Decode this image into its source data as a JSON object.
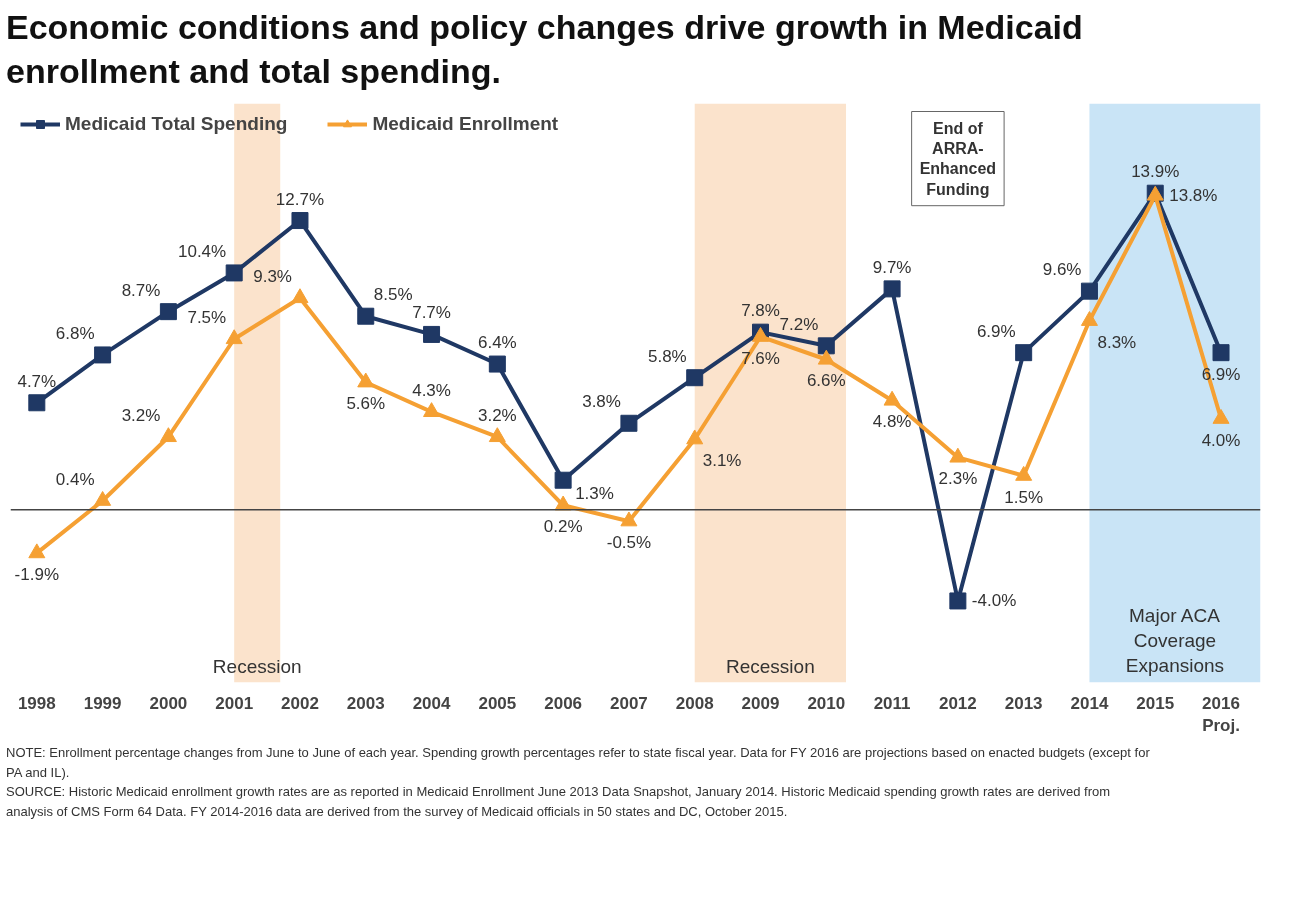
{
  "chart_data": {
    "type": "line",
    "title": "Economic conditions and policy changes drive growth in Medicaid enrollment and total spending.",
    "x": [
      1998,
      1999,
      2000,
      2001,
      2002,
      2003,
      2004,
      2005,
      2006,
      2007,
      2008,
      2009,
      2010,
      2011,
      2012,
      2013,
      2014,
      2015,
      2016
    ],
    "xlim": [
      1997.6,
      2016.6
    ],
    "xticks": [
      1998,
      1999,
      2000,
      2001,
      2002,
      2003,
      2004,
      2005,
      2006,
      2007,
      2008,
      2009,
      2010,
      2011,
      2012,
      2013,
      2014,
      2015,
      {
        "value": 2016,
        "label": "2016\nProj."
      }
    ],
    "series": [
      {
        "name": "Medicaid Total Spending",
        "color": "#1f3864",
        "marker": "square",
        "values": [
          4.7,
          6.8,
          8.7,
          10.4,
          12.7,
          8.5,
          7.7,
          6.4,
          1.3,
          3.8,
          5.8,
          7.8,
          7.2,
          9.7,
          -4.0,
          6.9,
          9.6,
          13.9,
          6.9
        ],
        "value_labels": [
          "4.7%",
          "6.8%",
          "8.7%",
          "10.4%",
          "12.7%",
          "8.5%",
          "7.7%",
          "6.4%",
          "1.3%",
          "3.8%",
          "5.8%",
          "7.8%",
          "7.2%",
          "9.7%",
          "-4.0%",
          "6.9%",
          "9.6%",
          "13.9%",
          "6.9%"
        ]
      },
      {
        "name": "Medicaid Enrollment",
        "color": "#f5a033",
        "marker": "triangle",
        "values": [
          -1.9,
          0.4,
          3.2,
          7.5,
          9.3,
          5.6,
          4.3,
          3.2,
          0.2,
          -0.5,
          3.1,
          7.6,
          6.6,
          4.8,
          2.3,
          1.5,
          8.3,
          13.8,
          4.0
        ],
        "value_labels": [
          "-1.9%",
          "0.4%",
          "3.2%",
          "7.5%",
          "9.3%",
          "5.6%",
          "4.3%",
          "3.2%",
          "0.2%",
          "-0.5%",
          "3.1%",
          "7.6%",
          "6.6%",
          "4.8%",
          "2.3%",
          "1.5%",
          "8.3%",
          "13.8%",
          "4.0%"
        ]
      }
    ],
    "legend": "top left",
    "bands": [
      {
        "axis": "x",
        "from": 2001,
        "to": 2001.7,
        "label": "Recession",
        "color": "#fbe3cc"
      },
      {
        "axis": "x",
        "from": 2008,
        "to": 2010.3,
        "label": "Recession",
        "color": "#fbe3cc"
      },
      {
        "axis": "x",
        "from": 2014,
        "to": 2016.6,
        "label": "Major ACA\nCoverage\nExpansions",
        "color": "#c9e4f6"
      }
    ],
    "annotations": [
      "End of\nARRA-\nEnhanced\nFunding",
      "NOTE: Enrollment percentage changes from June to June of each year. Spending growth percentages refer to state fiscal year. Data for FY 2016 are projections based on enacted budgets (except for PA and IL).",
      "SOURCE: Historic Medicaid enrollment growth rates are as reported in Medicaid Enrollment June 2013 Data Snapshot, January 2014. Historic Medicaid spending growth rates are derived from analysis of CMS Form 64 Data. FY 2014-2016 data are derived from the survey of Medicaid officials in 50 states and DC, October 2015."
    ]
  }
}
